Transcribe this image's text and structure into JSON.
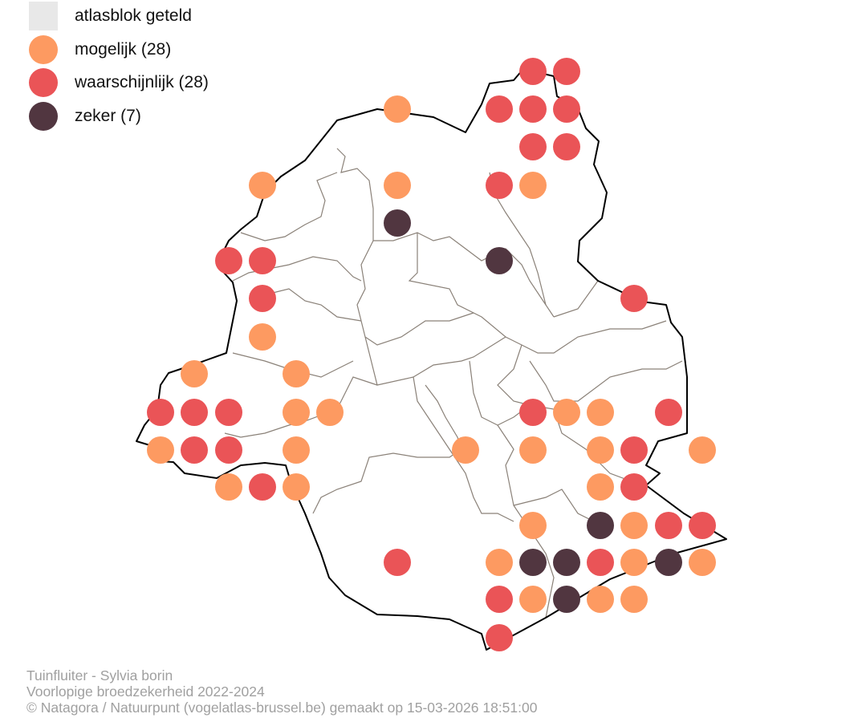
{
  "legend": {
    "items": [
      {
        "label": "atlasblok geteld",
        "color": "#e8e8e8"
      },
      {
        "label": "mogelijk (28)",
        "color": "#fd9a61"
      },
      {
        "label": "waarschijnlijk (28)",
        "color": "#ea5457"
      },
      {
        "label": "zeker (7)",
        "color": "#513640"
      }
    ]
  },
  "footer": {
    "species": "Tuinfluiter - Sylvia borin",
    "subtitle": "Voorlopige broedzekerheid 2022-2024",
    "credit": "© Natagora / Natuurpunt (vogelatlas-brussel.be) gemaakt op 15-03-2026 18:51:00"
  }
}
